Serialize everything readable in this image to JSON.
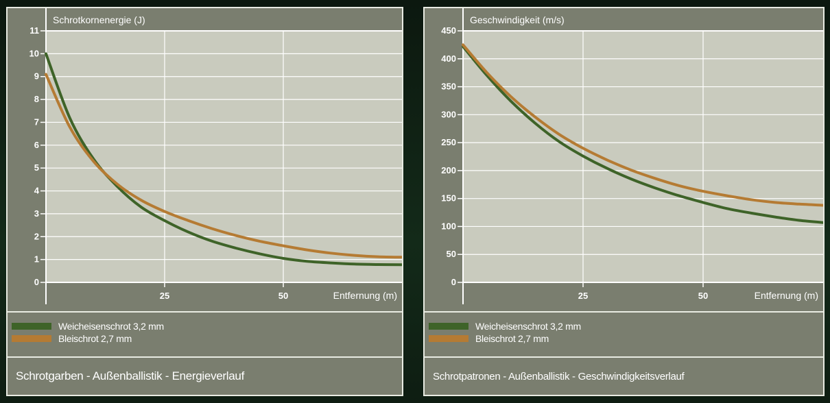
{
  "colors": {
    "series_green": "#3e6328",
    "series_orange": "#b57b33",
    "plot_bg": "#c9cbbe",
    "frame": "#7a7e6f",
    "grid": "#ffffff"
  },
  "chart_data": [
    {
      "type": "line",
      "title": "Schrotkornenergie (J)",
      "xlabel": "Entfernung (m)",
      "ylabel": "",
      "xlim": [
        0,
        75
      ],
      "ylim": [
        0,
        11
      ],
      "x_ticks": [
        25,
        50
      ],
      "y_ticks": [
        0,
        1,
        2,
        3,
        4,
        5,
        6,
        7,
        8,
        9,
        10,
        11
      ],
      "grid": true,
      "series": [
        {
          "name": "Weicheisenschrot 3,2 mm",
          "color": "#3e6328",
          "x": [
            0,
            5,
            10,
            15,
            20,
            25,
            30,
            35,
            40,
            45,
            50,
            55,
            60,
            65,
            70,
            75
          ],
          "y": [
            10.0,
            7.2,
            5.4,
            4.2,
            3.3,
            2.7,
            2.2,
            1.8,
            1.5,
            1.25,
            1.05,
            0.92,
            0.85,
            0.8,
            0.78,
            0.77
          ]
        },
        {
          "name": "Bleischrot 2,7 mm",
          "color": "#b57b33",
          "x": [
            0,
            5,
            10,
            15,
            20,
            25,
            30,
            35,
            40,
            45,
            50,
            55,
            60,
            65,
            70,
            75
          ],
          "y": [
            9.1,
            6.8,
            5.3,
            4.3,
            3.6,
            3.1,
            2.7,
            2.35,
            2.05,
            1.8,
            1.6,
            1.42,
            1.28,
            1.18,
            1.12,
            1.1
          ]
        }
      ],
      "legend": [
        "Weicheisenschrot 3,2 mm",
        "Bleischrot 2,7 mm"
      ],
      "caption": "Schrotgarben - Außenballistik - Energieverlauf"
    },
    {
      "type": "line",
      "title": "Geschwindigkeit (m/s)",
      "xlabel": "Entfernung (m)",
      "ylabel": "",
      "xlim": [
        0,
        75
      ],
      "ylim": [
        0,
        450
      ],
      "x_ticks": [
        25,
        50
      ],
      "y_ticks": [
        0,
        50,
        100,
        150,
        200,
        250,
        300,
        350,
        400,
        450
      ],
      "grid": true,
      "series": [
        {
          "name": "Weicheisenschrot 3,2 mm",
          "color": "#3e6328",
          "x": [
            0,
            5,
            10,
            15,
            20,
            25,
            30,
            35,
            40,
            45,
            50,
            55,
            60,
            65,
            70,
            75
          ],
          "y": [
            422,
            370,
            324,
            285,
            252,
            226,
            204,
            185,
            169,
            155,
            143,
            132,
            124,
            117,
            111,
            107
          ]
        },
        {
          "name": "Bleischrot 2,7 mm",
          "color": "#b57b33",
          "x": [
            0,
            5,
            10,
            15,
            20,
            25,
            30,
            35,
            40,
            45,
            50,
            55,
            60,
            65,
            70,
            75
          ],
          "y": [
            425,
            375,
            332,
            296,
            265,
            240,
            219,
            201,
            186,
            173,
            163,
            155,
            148,
            143,
            140,
            138
          ]
        }
      ],
      "legend": [
        "Weicheisenschrot 3,2 mm",
        "Bleischrot 2,7 mm"
      ],
      "caption": "Schrotpatronen - Außenballistik - Geschwindigkeitsverlauf"
    }
  ]
}
